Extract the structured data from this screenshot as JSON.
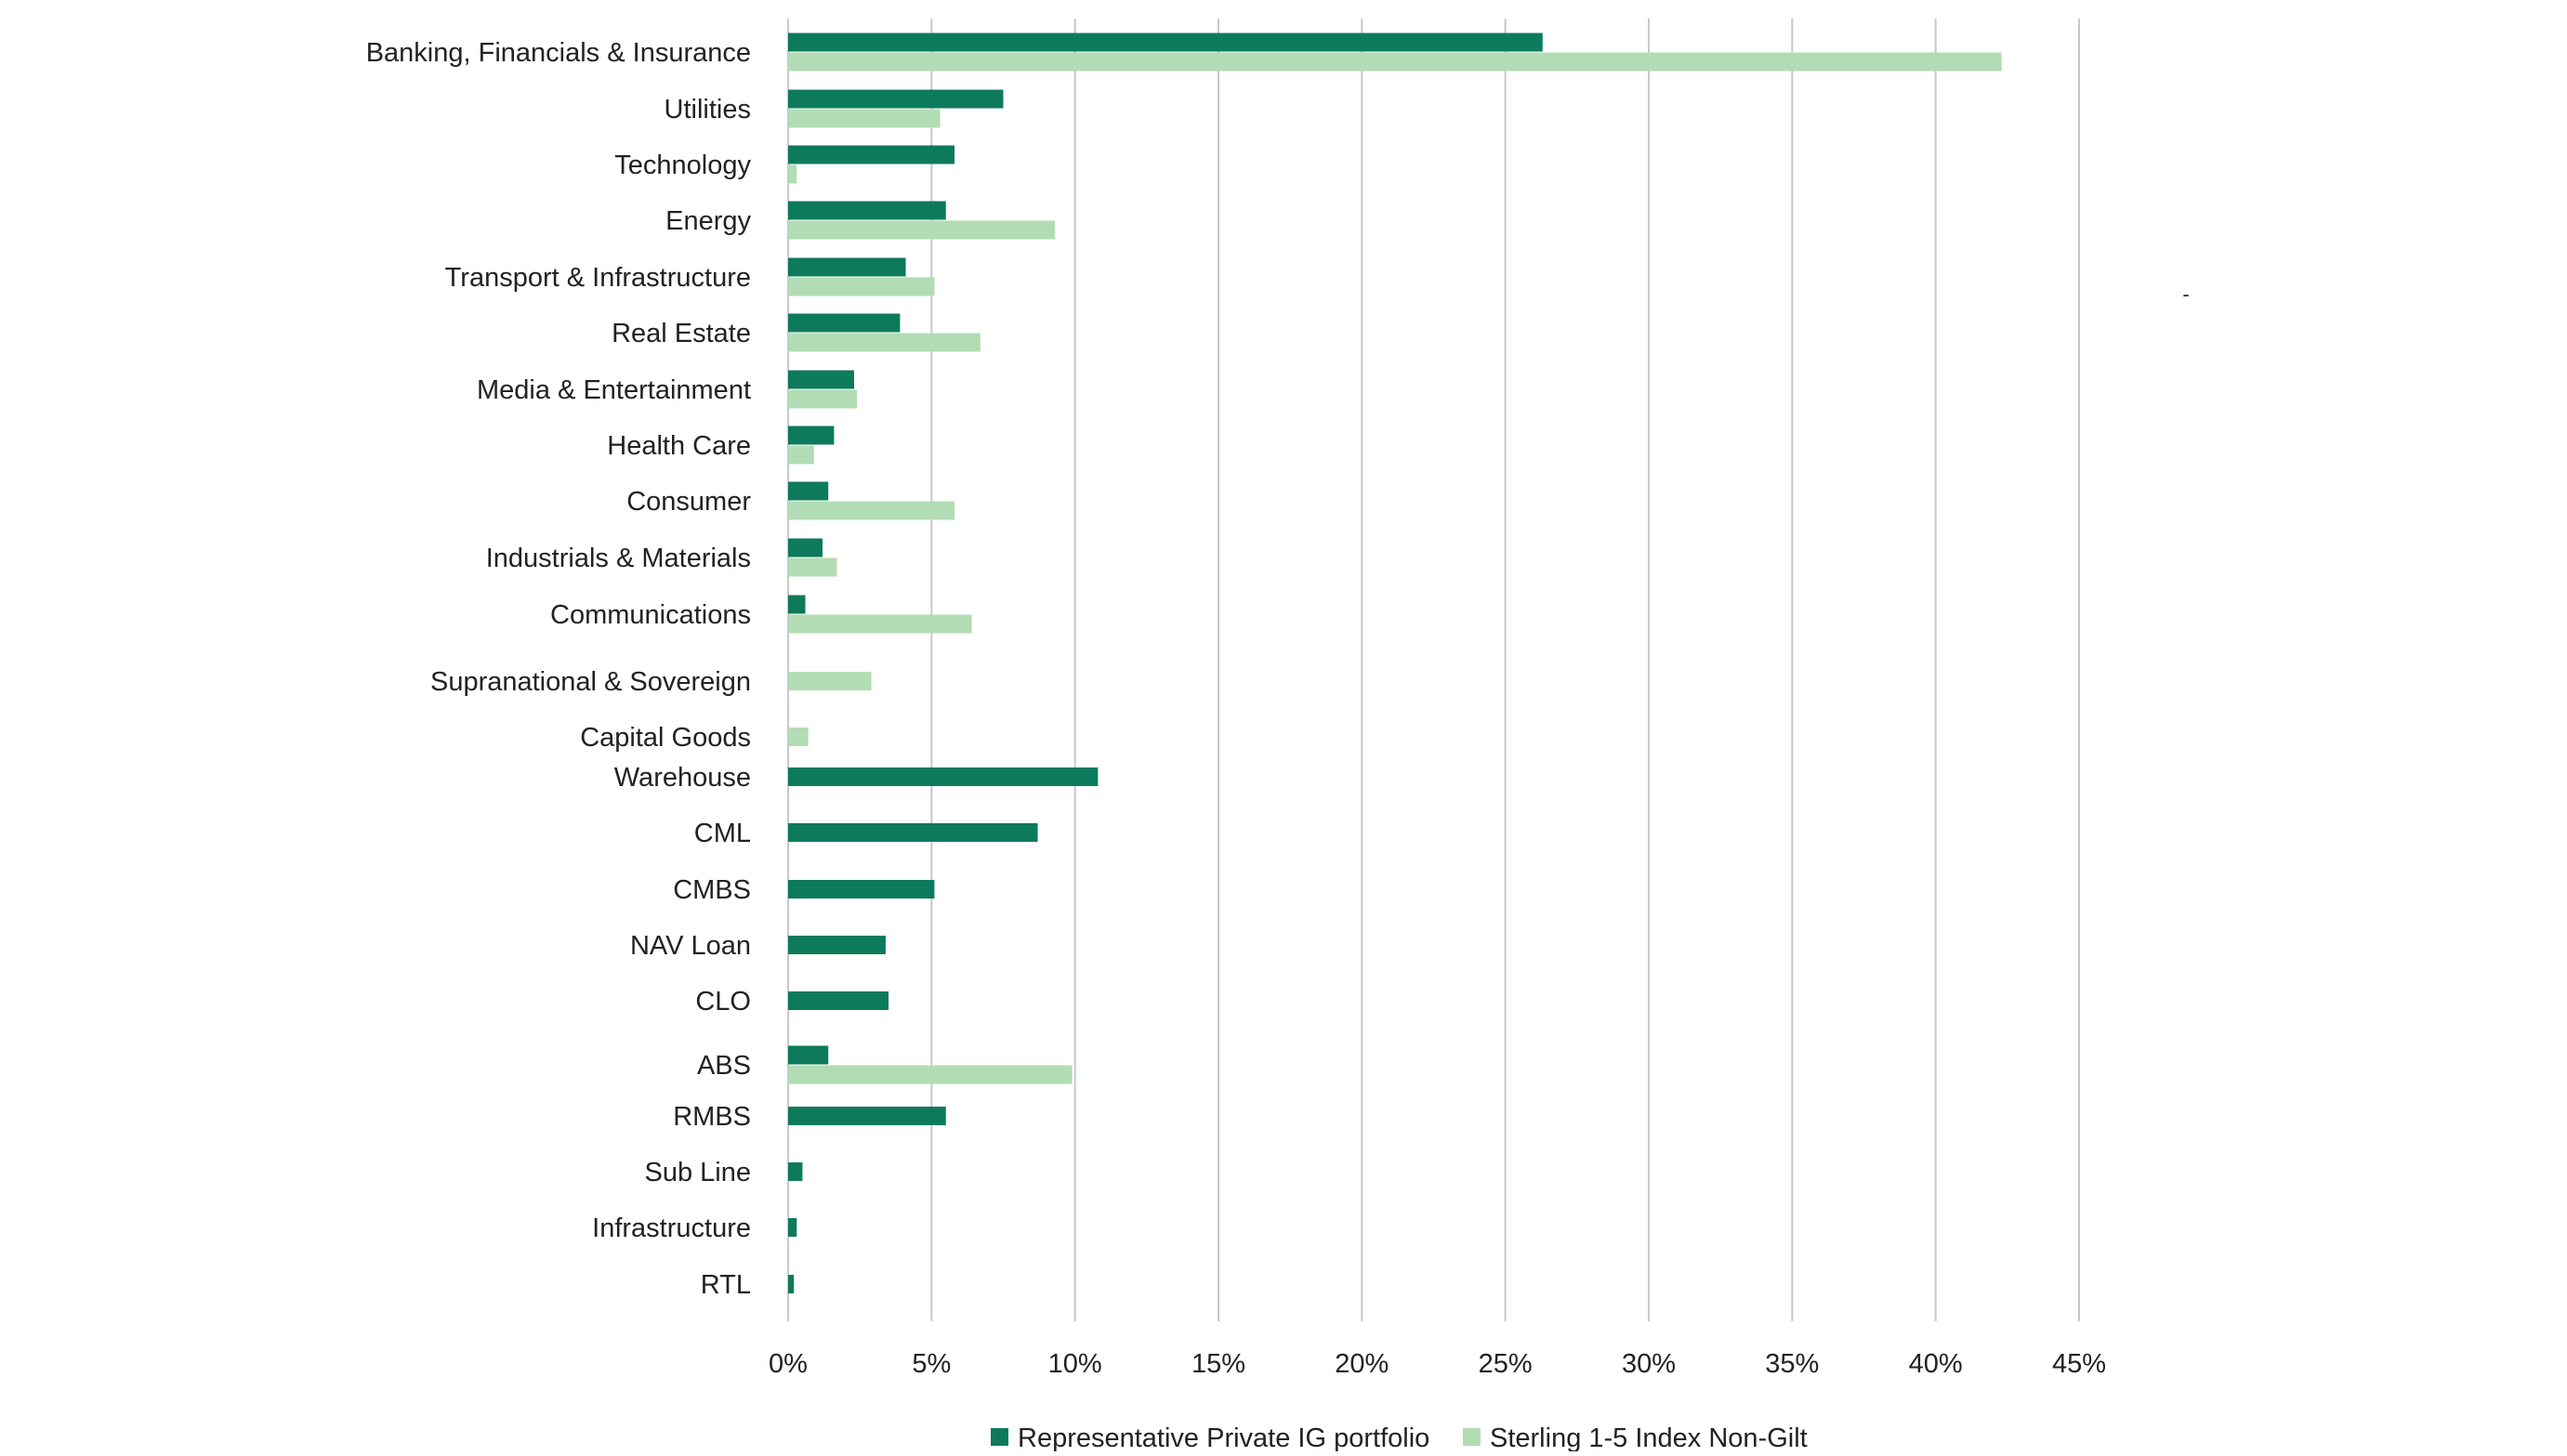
{
  "chart_data": {
    "type": "bar",
    "orientation": "horizontal",
    "title": "",
    "xlabel": "",
    "ylabel": "",
    "xlim": [
      0,
      45
    ],
    "x_ticks": [
      "0%",
      "5%",
      "10%",
      "15%",
      "20%",
      "25%",
      "30%",
      "35%",
      "40%",
      "45%"
    ],
    "grid": "vertical",
    "legend_position": "bottom",
    "stray_mark": "-",
    "categories": [
      "Banking, Financials & Insurance",
      "Utilities",
      "Technology",
      "Energy",
      "Transport & Infrastructure",
      "Real Estate",
      "Media & Entertainment",
      "Health Care",
      "Consumer",
      "Industrials & Materials",
      "Communications",
      "Supranational & Sovereign",
      "Capital Goods",
      "Warehouse",
      "CML",
      "CMBS",
      "NAV Loan",
      "CLO",
      "ABS",
      "RMBS",
      "Sub Line",
      "Infrastructure",
      "RTL"
    ],
    "series": [
      {
        "name": "Representative Private IG portfolio",
        "color": "#0e7a5c",
        "values": [
          26.3,
          7.5,
          5.8,
          5.5,
          4.1,
          3.9,
          2.3,
          1.6,
          1.4,
          1.2,
          0.6,
          null,
          null,
          10.8,
          8.7,
          5.1,
          3.4,
          3.5,
          1.4,
          5.5,
          0.5,
          0.3,
          0.2
        ]
      },
      {
        "name": "Sterling 1-5 Index Non-Gilt",
        "color": "#b2dcb4",
        "values": [
          42.3,
          5.3,
          0.3,
          9.3,
          5.1,
          6.7,
          2.4,
          0.9,
          5.8,
          1.7,
          6.4,
          2.9,
          0.7,
          null,
          null,
          null,
          null,
          null,
          9.9,
          null,
          null,
          null,
          null
        ]
      }
    ]
  }
}
